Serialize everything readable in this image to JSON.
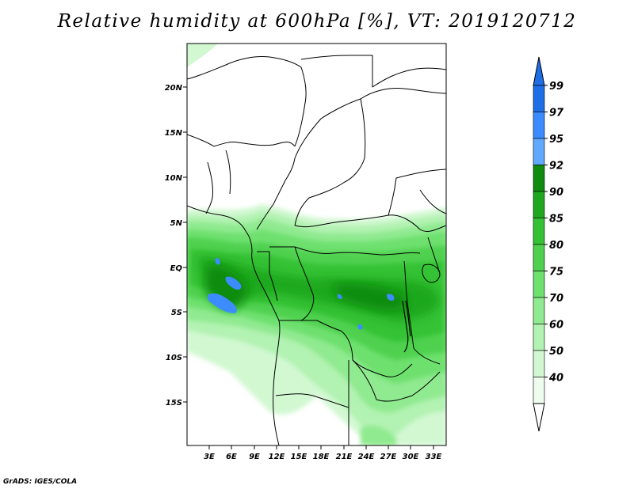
{
  "title": "Relative humidity at 600hPa [%], VT: 2019120712",
  "credit": "GrADS: IGES/COLA",
  "lat_labels": [
    "20N",
    "15N",
    "10N",
    "5N",
    "EQ",
    "5S",
    "10S",
    "15S"
  ],
  "lon_labels": [
    "3E",
    "6E",
    "9E",
    "12E",
    "15E",
    "18E",
    "21E",
    "24E",
    "27E",
    "30E",
    "33E"
  ],
  "legend": {
    "labels": [
      "99",
      "97",
      "95",
      "92",
      "90",
      "85",
      "80",
      "75",
      "70",
      "60",
      "50",
      "40"
    ],
    "colors": [
      "#1e6ee6",
      "#3c8cff",
      "#60a9ff",
      "#0f8c0f",
      "#1fa81f",
      "#34c234",
      "#4fd14f",
      "#6ee06e",
      "#90ea90",
      "#b2f2b2",
      "#d2f8d2",
      "#eefcee"
    ]
  },
  "colors": {
    "frame": "#000000",
    "background": "#ffffff"
  }
}
